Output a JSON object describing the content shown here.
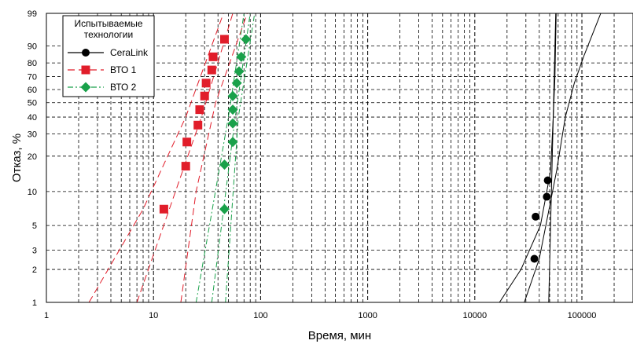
{
  "chart_data": {
    "type": "scatter",
    "scale": {
      "x": "log",
      "y": "weibull-probability"
    },
    "title": "",
    "xlabel": "Время, мин",
    "ylabel": "Отказ, %",
    "xlim": [
      1,
      300000
    ],
    "ylim": [
      1,
      99
    ],
    "x_ticks": [
      {
        "value": 1,
        "label": "1"
      },
      {
        "value": 10,
        "label": "10"
      },
      {
        "value": 100,
        "label": "100"
      },
      {
        "value": 1000,
        "label": "1000"
      },
      {
        "value": 10000,
        "label": "10000"
      },
      {
        "value": 100000,
        "label": "100000"
      }
    ],
    "y_ticks": [
      {
        "value": 1,
        "label": "1"
      },
      {
        "value": 2,
        "label": "2"
      },
      {
        "value": 3,
        "label": "3"
      },
      {
        "value": 5,
        "label": "5"
      },
      {
        "value": 10,
        "label": "10"
      },
      {
        "value": 20,
        "label": "20"
      },
      {
        "value": 30,
        "label": "30"
      },
      {
        "value": 40,
        "label": "40"
      },
      {
        "value": 50,
        "label": "50"
      },
      {
        "value": 60,
        "label": "60"
      },
      {
        "value": 70,
        "label": "70"
      },
      {
        "value": 80,
        "label": "80"
      },
      {
        "value": 90,
        "label": "90"
      },
      {
        "value": 99,
        "label": "99"
      }
    ],
    "grid": true,
    "legend": {
      "position": "top-left",
      "title_lines": [
        "Испытываемые",
        "технологии"
      ]
    },
    "series": [
      {
        "name": "CeraLink",
        "color": "#000000",
        "marker": "circle",
        "line_style": "solid",
        "points": [
          {
            "x": 36000,
            "y": 2.5
          },
          {
            "x": 37000,
            "y": 6
          },
          {
            "x": 47000,
            "y": 9
          },
          {
            "x": 48000,
            "y": 12.5
          }
        ],
        "fit_line": [
          {
            "x": 49000,
            "y": 1
          },
          {
            "x": 57000,
            "y": 99
          }
        ],
        "bounds": [
          [
            {
              "x": 17000,
              "y": 1
            },
            {
              "x": 27000,
              "y": 2
            },
            {
              "x": 41000,
              "y": 5
            },
            {
              "x": 51000,
              "y": 15
            },
            {
              "x": 54000,
              "y": 40
            },
            {
              "x": 56000,
              "y": 70
            },
            {
              "x": 57500,
              "y": 99
            }
          ],
          [
            {
              "x": 29000,
              "y": 1
            },
            {
              "x": 40000,
              "y": 2.5
            },
            {
              "x": 58000,
              "y": 15
            },
            {
              "x": 70000,
              "y": 40
            },
            {
              "x": 85000,
              "y": 65
            },
            {
              "x": 105000,
              "y": 85
            },
            {
              "x": 150000,
              "y": 99
            }
          ]
        ]
      },
      {
        "name": "ВТО 1",
        "color": "#e11d2a",
        "marker": "square",
        "line_style": "dashed",
        "points": [
          {
            "x": 12.5,
            "y": 7
          },
          {
            "x": 20,
            "y": 16.5
          },
          {
            "x": 20.5,
            "y": 26
          },
          {
            "x": 26,
            "y": 35
          },
          {
            "x": 27,
            "y": 45
          },
          {
            "x": 30,
            "y": 55
          },
          {
            "x": 31,
            "y": 65
          },
          {
            "x": 35,
            "y": 75
          },
          {
            "x": 36,
            "y": 84
          },
          {
            "x": 46,
            "y": 93
          }
        ],
        "fit_line": [
          {
            "x": 7.0,
            "y": 1
          },
          {
            "x": 28,
            "y": 40
          },
          {
            "x": 55,
            "y": 99
          }
        ],
        "bounds": [
          [
            {
              "x": 2.5,
              "y": 1
            },
            {
              "x": 8,
              "y": 7
            },
            {
              "x": 20,
              "y": 40
            },
            {
              "x": 45,
              "y": 99
            }
          ],
          [
            {
              "x": 18,
              "y": 1
            },
            {
              "x": 25,
              "y": 10
            },
            {
              "x": 38,
              "y": 50
            },
            {
              "x": 75,
              "y": 99
            }
          ]
        ]
      },
      {
        "name": "ВТО 2",
        "color": "#19a14a",
        "marker": "diamond",
        "line_style": "dashdot",
        "points": [
          {
            "x": 46,
            "y": 7
          },
          {
            "x": 46,
            "y": 17
          },
          {
            "x": 55,
            "y": 26
          },
          {
            "x": 55,
            "y": 36
          },
          {
            "x": 55,
            "y": 45
          },
          {
            "x": 55,
            "y": 55
          },
          {
            "x": 60,
            "y": 65
          },
          {
            "x": 63,
            "y": 74
          },
          {
            "x": 66,
            "y": 84
          },
          {
            "x": 73,
            "y": 93
          }
        ],
        "fit_line": [
          {
            "x": 35,
            "y": 1
          },
          {
            "x": 58,
            "y": 40
          },
          {
            "x": 80,
            "y": 99
          }
        ],
        "bounds": [
          [
            {
              "x": 25,
              "y": 1
            },
            {
              "x": 50,
              "y": 40
            },
            {
              "x": 70,
              "y": 99
            }
          ],
          [
            {
              "x": 47,
              "y": 1
            },
            {
              "x": 62,
              "y": 40
            },
            {
              "x": 88,
              "y": 99
            }
          ]
        ]
      }
    ]
  }
}
